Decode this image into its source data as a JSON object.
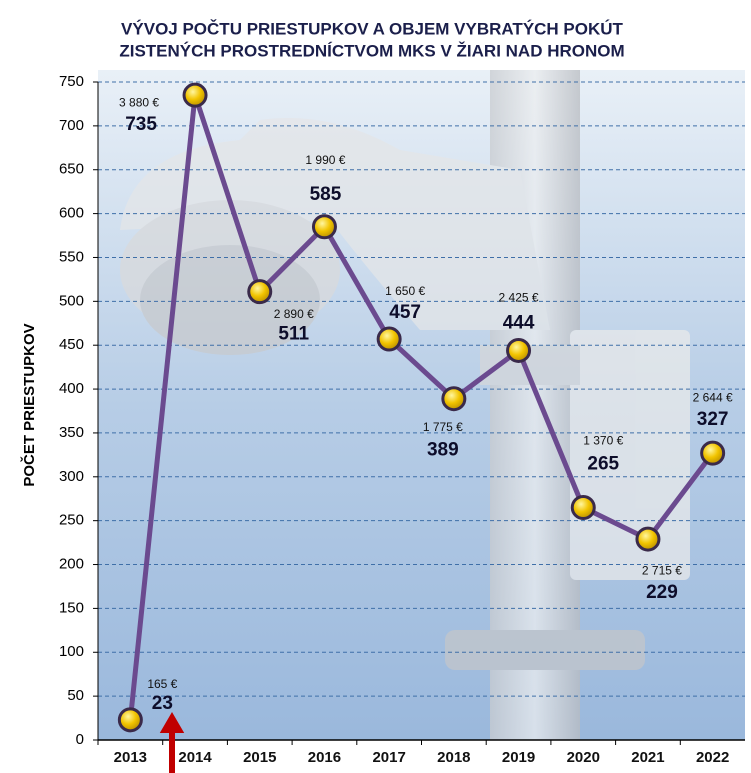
{
  "chart_data": {
    "type": "line",
    "title": [
      "VÝVOJ POČTU PRIESTUPKOV A OBJEM VYBRATÝCH POKÚT",
      "ZISTENÝCH PROSTREDNÍCTVOM MKS V ŽIARI NAD HRONOM"
    ],
    "y_label": "POČET PRIESTUPKOV",
    "categories": [
      "2013",
      "2014",
      "2015",
      "2016",
      "2017",
      "2018",
      "2019",
      "2020",
      "2021",
      "2022"
    ],
    "values": [
      23,
      735,
      511,
      585,
      457,
      389,
      444,
      265,
      229,
      327
    ],
    "annotations": [
      "165 €",
      "3 880 €",
      "2 890 €",
      "1 990 €",
      "1 650 €",
      "1 775 €",
      "2 425 €",
      "1 370 €",
      "2 715 €",
      "2 644 €"
    ],
    "color": "#6b4a8f",
    "ylim": [
      0,
      750
    ],
    "yticks": [
      0,
      50,
      100,
      150,
      200,
      250,
      300,
      350,
      400,
      450,
      500,
      550,
      600,
      650,
      700,
      750
    ],
    "grid": true
  }
}
